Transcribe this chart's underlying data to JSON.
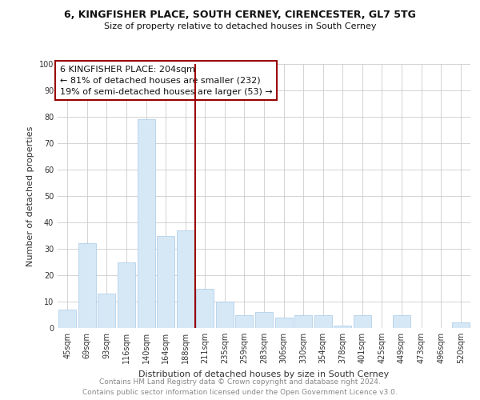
{
  "title_line1": "6, KINGFISHER PLACE, SOUTH CERNEY, CIRENCESTER, GL7 5TG",
  "title_line2": "Size of property relative to detached houses in South Cerney",
  "xlabel": "Distribution of detached houses by size in South Cerney",
  "ylabel": "Number of detached properties",
  "property_label": "6 KINGFISHER PLACE: 204sqm",
  "annotation_line1": "← 81% of detached houses are smaller (232)",
  "annotation_line2": "19% of semi-detached houses are larger (53) →",
  "footer_line1": "Contains HM Land Registry data © Crown copyright and database right 2024.",
  "footer_line2": "Contains public sector information licensed under the Open Government Licence v3.0.",
  "categories": [
    "45sqm",
    "69sqm",
    "93sqm",
    "116sqm",
    "140sqm",
    "164sqm",
    "188sqm",
    "211sqm",
    "235sqm",
    "259sqm",
    "283sqm",
    "306sqm",
    "330sqm",
    "354sqm",
    "378sqm",
    "401sqm",
    "425sqm",
    "449sqm",
    "473sqm",
    "496sqm",
    "520sqm"
  ],
  "values": [
    7,
    32,
    13,
    25,
    79,
    35,
    37,
    15,
    10,
    5,
    6,
    4,
    5,
    5,
    1,
    5,
    0,
    5,
    0,
    0,
    2
  ],
  "bar_color": "#d6e8f5",
  "bar_edge_color": "#a8c8e8",
  "highlight_line_color": "#990000",
  "annotation_box_color": "#ffffff",
  "annotation_box_edge": "#990000",
  "ylim": [
    0,
    100
  ],
  "yticks": [
    0,
    10,
    20,
    30,
    40,
    50,
    60,
    70,
    80,
    90,
    100
  ],
  "background_color": "#ffffff",
  "grid_color": "#cccccc",
  "title_fontsize": 9,
  "subtitle_fontsize": 8,
  "ylabel_fontsize": 8,
  "xlabel_fontsize": 8,
  "tick_fontsize": 7,
  "annotation_fontsize": 8,
  "footer_fontsize": 6.5
}
